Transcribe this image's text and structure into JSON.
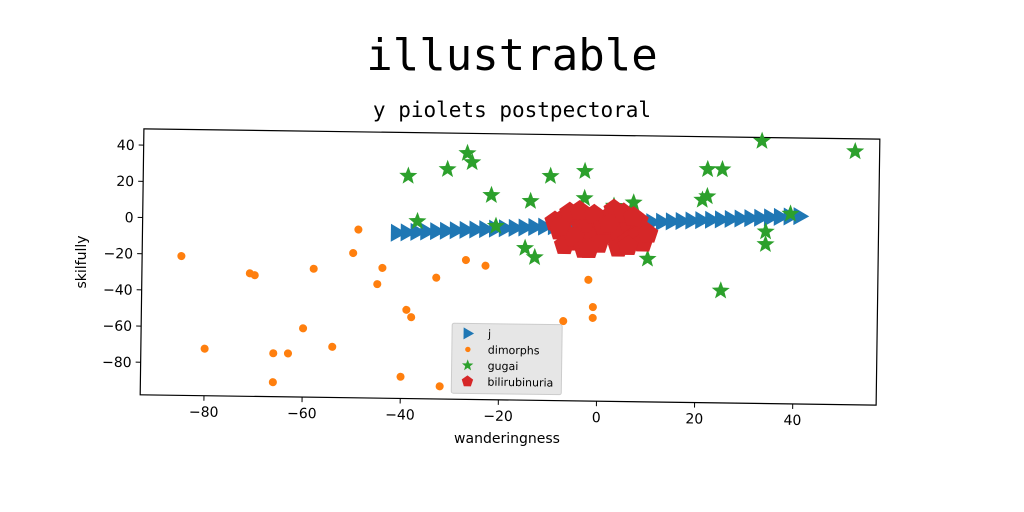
{
  "chart_data": {
    "type": "scatter",
    "title": "illustrable",
    "subtitle": "y piolets postpectoral",
    "xlabel": "wanderingness",
    "ylabel": "skilfully",
    "xlim": [
      -93,
      57
    ],
    "ylim": [
      -98,
      49
    ],
    "xticks": [
      -80,
      -60,
      -40,
      -20,
      0,
      20,
      40
    ],
    "yticks": [
      40,
      20,
      0,
      -20,
      -40,
      -60,
      -80
    ],
    "grid": false,
    "legend_position": "lower center",
    "series": [
      {
        "name": "j",
        "marker": "triangle-right",
        "color": "#1f77b4",
        "x": [
          -41,
          -39,
          -37,
          -35,
          -33,
          -31,
          -29,
          -27,
          -25,
          -23,
          -21,
          -19,
          -17,
          -15,
          -13,
          -11,
          -9,
          -7,
          -5,
          -3,
          -1,
          1,
          3,
          5,
          7,
          9,
          11,
          13,
          15,
          17,
          19,
          21,
          23,
          25,
          27,
          29,
          31,
          33,
          35,
          37,
          39,
          41
        ],
        "y": [
          -6.5,
          -6.2,
          -5.9,
          -5.6,
          -5.3,
          -5.0,
          -4.7,
          -4.4,
          -4.1,
          -3.8,
          -3.5,
          -3.2,
          -2.9,
          -2.6,
          -2.3,
          -2.0,
          -1.7,
          -1.4,
          -1.1,
          -0.8,
          -0.5,
          -0.2,
          0.1,
          0.4,
          0.7,
          1.0,
          1.3,
          1.6,
          1.9,
          2.2,
          2.5,
          2.8,
          3.1,
          3.4,
          3.7,
          4.0,
          4.3,
          4.6,
          4.9,
          5.2,
          5.5,
          5.8
        ]
      },
      {
        "name": "dimorphs",
        "marker": "circle",
        "color": "#ff7f0e",
        "x": [
          -85,
          -80,
          -71,
          -70,
          -66,
          -66,
          -63,
          -60,
          -58,
          -54,
          -50,
          -49,
          -45,
          -44,
          -40,
          -39,
          -38,
          -33,
          -32,
          -27,
          -23,
          -17,
          -7,
          -2,
          -1,
          -1
        ],
        "y": [
          -21,
          -72,
          -30,
          -31,
          -90,
          -74,
          -74,
          -60,
          -27,
          -70,
          -18,
          -5,
          -35,
          -26,
          -86,
          -49,
          -53,
          -31,
          -91,
          -21,
          -24,
          -61,
          -54,
          -31,
          -46,
          -52
        ]
      },
      {
        "name": "gugai",
        "marker": "star",
        "color": "#2ca02c",
        "x": [
          -39,
          -37,
          -31,
          -27,
          -26,
          -22,
          -21,
          -15,
          -14,
          -13,
          -10,
          -3,
          -3,
          3,
          7,
          10,
          21,
          22,
          22,
          25,
          25,
          33,
          34,
          34,
          39,
          52
        ],
        "y": [
          25,
          0,
          29,
          38,
          33,
          15,
          -2,
          -14,
          12,
          -19,
          26,
          29,
          14,
          10,
          12,
          -19,
          14,
          16,
          31,
          31,
          -36,
          47,
          -3,
          -10,
          7,
          42
        ]
      },
      {
        "name": "bilirubinuria",
        "marker": "pentagon",
        "color": "#d62728",
        "x": [
          -9,
          -8,
          -7,
          -6,
          -5,
          -4,
          -3,
          -2,
          -1,
          0,
          1,
          2,
          3,
          4,
          5,
          6,
          7,
          8,
          9,
          -7,
          -5,
          -3,
          0,
          2,
          4,
          6,
          8,
          -6,
          -4,
          -1,
          1,
          3,
          5,
          7,
          9,
          -8,
          -2,
          2,
          6,
          10
        ],
        "y": [
          1,
          -4,
          3,
          -7,
          -10,
          2,
          -5,
          0,
          -9,
          3,
          -2,
          -6,
          5,
          -4,
          -11,
          1,
          -7,
          2,
          -3,
          -12,
          -8,
          -14,
          -11,
          4,
          -13,
          -9,
          -6,
          6,
          7,
          5,
          -1,
          8,
          6,
          4,
          -10,
          -2,
          -14,
          0,
          -12,
          -5
        ]
      }
    ]
  }
}
